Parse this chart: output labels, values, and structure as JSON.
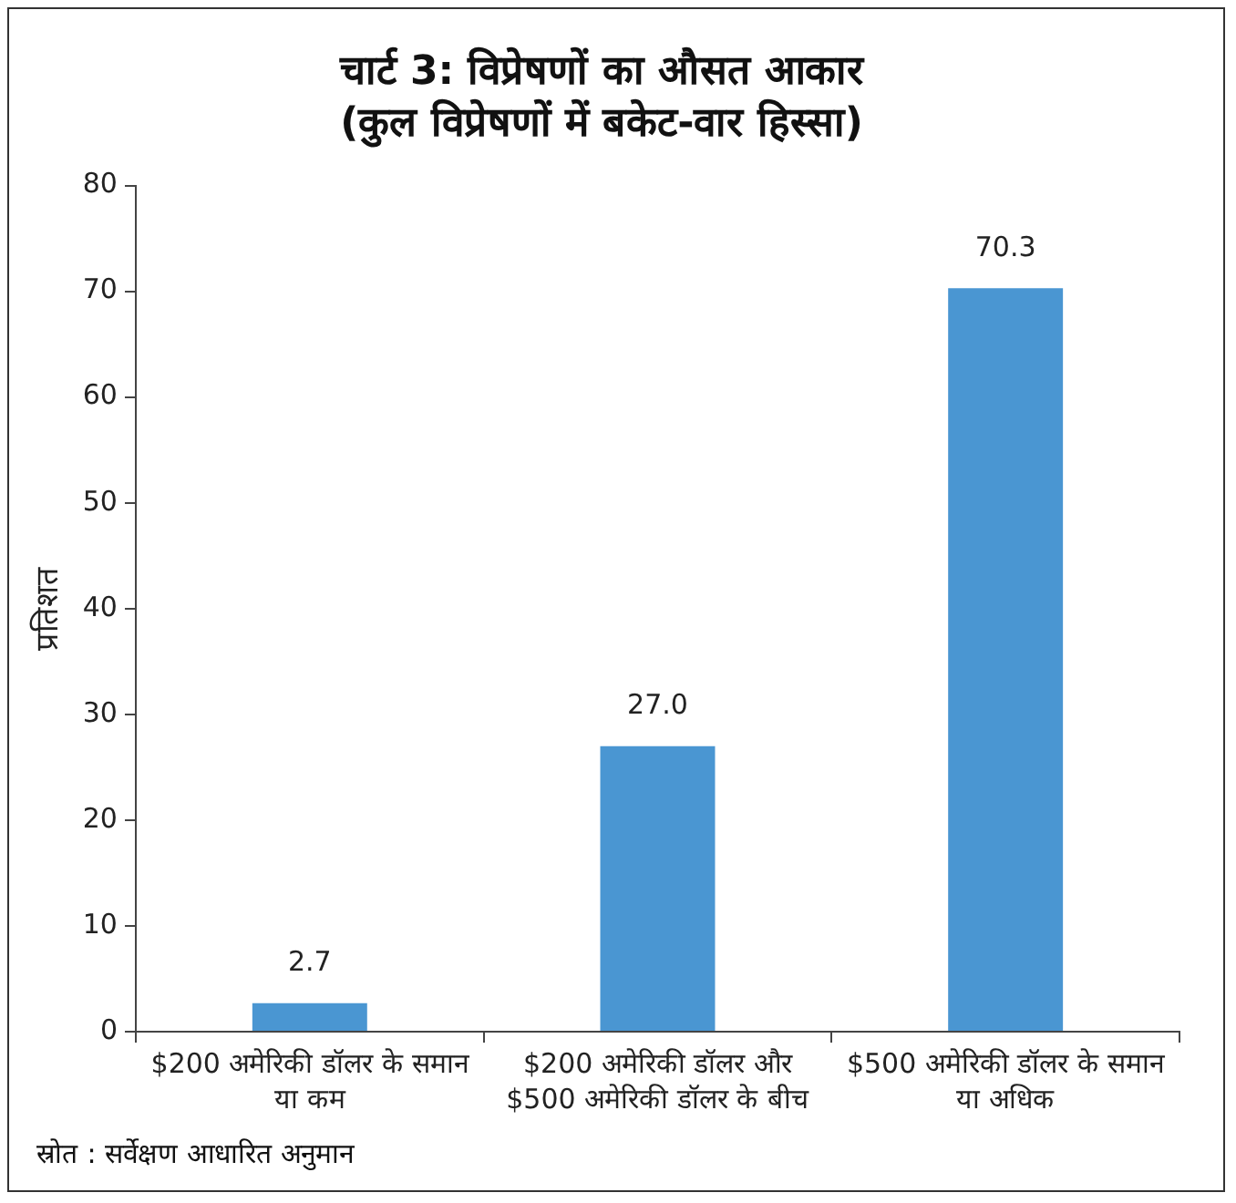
{
  "chart_data": {
    "type": "bar",
    "title": "चार्ट 3: विप्रेषणों का औसत आकार",
    "subtitle": "(कुल विप्रेषणों में बकेट-वार हिस्सा)",
    "ylabel": "प्रतिशत",
    "categories": [
      "$200 अमेरिकी डॉलर के समान या कम",
      "$200 अमेरिकी डॉलर और $500 अमेरिकी डॉलर के बीच",
      "$500 अमेरिकी डॉलर के समान या अधिक"
    ],
    "values": [
      2.7,
      27.0,
      70.3
    ],
    "color": "#4a96d2",
    "value_labels": [
      "2.7",
      "27.0",
      "70.3"
    ],
    "ylim": [
      0,
      80
    ],
    "yticks": [
      0,
      10,
      20,
      30,
      40,
      50,
      60,
      70,
      80
    ],
    "grid": false,
    "legend": false,
    "annotations": [
      "स्रोत : सर्वेक्षण आधारित अनुमान"
    ]
  }
}
